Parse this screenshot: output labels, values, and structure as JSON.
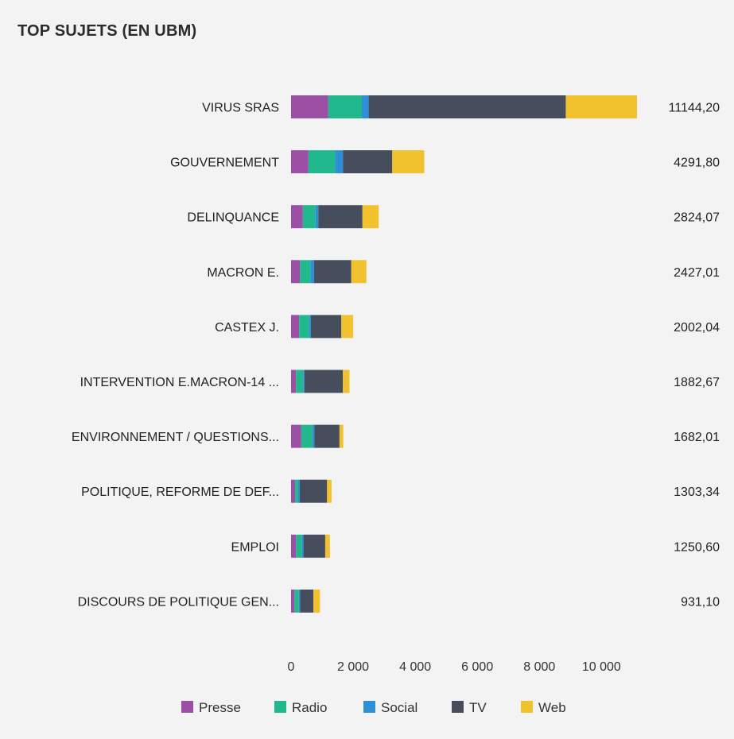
{
  "title": "TOP SUJETS (EN UBM)",
  "chart_data": {
    "type": "bar",
    "orientation": "horizontal",
    "stacked": true,
    "categories": [
      "VIRUS SRAS",
      "GOUVERNEMENT",
      "DELINQUANCE",
      "MACRON E.",
      "CASTEX J.",
      "INTERVENTION E.MACRON-14 ...",
      "ENVIRONNEMENT / QUESTIONS...",
      "POLITIQUE, REFORME DE DEF...",
      "EMPLOI",
      "DISCOURS DE POLITIQUE GEN..."
    ],
    "totals": [
      "11144,20",
      "4291,80",
      "2824,07",
      "2427,01",
      "2002,04",
      "1882,67",
      "1682,01",
      "1303,34",
      "1250,60",
      "931,10"
    ],
    "series": [
      {
        "name": "Presse",
        "color": "#9b4fa5",
        "values": [
          1200,
          560,
          380,
          290,
          260,
          160,
          330,
          130,
          160,
          110
        ]
      },
      {
        "name": "Radio",
        "color": "#22b88e",
        "values": [
          1080,
          860,
          410,
          340,
          320,
          230,
          360,
          100,
          190,
          140
        ]
      },
      {
        "name": "Social",
        "color": "#2f8ed8",
        "values": [
          220,
          250,
          90,
          110,
          60,
          40,
          60,
          50,
          50,
          40
        ]
      },
      {
        "name": "TV",
        "color": "#464d5c",
        "values": [
          6350,
          1590,
          1420,
          1200,
          980,
          1240,
          810,
          880,
          700,
          430
        ]
      },
      {
        "name": "Web",
        "color": "#f2c12e",
        "values": [
          2294.2,
          1031.8,
          524.07,
          487.01,
          382.04,
          212.67,
          122.01,
          143.34,
          150.6,
          211.1
        ]
      }
    ],
    "x_ticks": [
      "0",
      "2 000",
      "4 000",
      "6 000",
      "8 000",
      "10 000"
    ],
    "x_tick_values": [
      0,
      2000,
      4000,
      6000,
      8000,
      10000
    ],
    "xlim": [
      0,
      11144.2
    ],
    "grid": false,
    "legend_position": "bottom"
  }
}
